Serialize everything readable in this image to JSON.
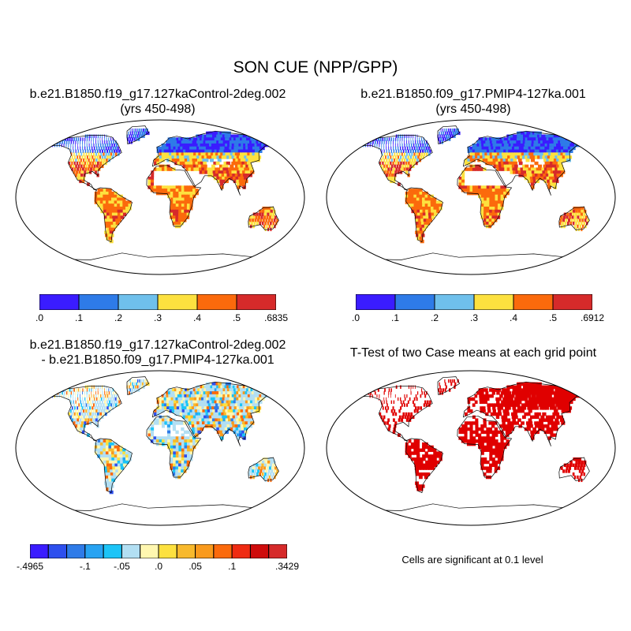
{
  "main_title": "SON CUE (NPP/GPP)",
  "panels": {
    "top_left": {
      "title_line1": "b.e21.B1850.f19_g17.127kaControl-2deg.002",
      "title_line2": "(yrs 450-498)",
      "colorbar": {
        "colors": [
          "#3a1cff",
          "#2e7be8",
          "#6fc0ec",
          "#fde13f",
          "#fb6a0c",
          "#d62a2a"
        ],
        "labels": [
          ".0",
          ".1",
          ".2",
          ".3",
          ".4",
          ".5",
          ".6835"
        ]
      }
    },
    "top_right": {
      "title_line1": "b.e21.B1850.f09_g17.PMIP4-127ka.001",
      "title_line2": "(yrs 450-498)",
      "colorbar": {
        "colors": [
          "#3a1cff",
          "#2e7be8",
          "#6fc0ec",
          "#fde13f",
          "#fb6a0c",
          "#d62a2a"
        ],
        "labels": [
          ".0",
          ".1",
          ".2",
          ".3",
          ".4",
          ".5",
          ".6912"
        ]
      }
    },
    "bottom_left": {
      "title_line1": "b.e21.B1850.f19_g17.127kaControl-2deg.002",
      "title_line2": "- b.e21.B1850.f09_g17.PMIP4-127ka.001",
      "colorbar": {
        "colors": [
          "#3a1cff",
          "#2d4fee",
          "#2e7be8",
          "#27a3f2",
          "#1cc4f7",
          "#b2dff3",
          "#fff7b0",
          "#fde13f",
          "#f8b92c",
          "#f99a1c",
          "#fb6a0c",
          "#ef2b12",
          "#cf0c0c",
          "#d62a2a"
        ],
        "labels": [
          "-.4965",
          "-.1",
          "-.05",
          ".0",
          ".05",
          ".1",
          ".3429"
        ]
      }
    },
    "bottom_right": {
      "title": "T-Test of two Case means at each grid point",
      "note": "Cells are significant at 0.1 level",
      "significance_color": "#e00000"
    }
  }
}
